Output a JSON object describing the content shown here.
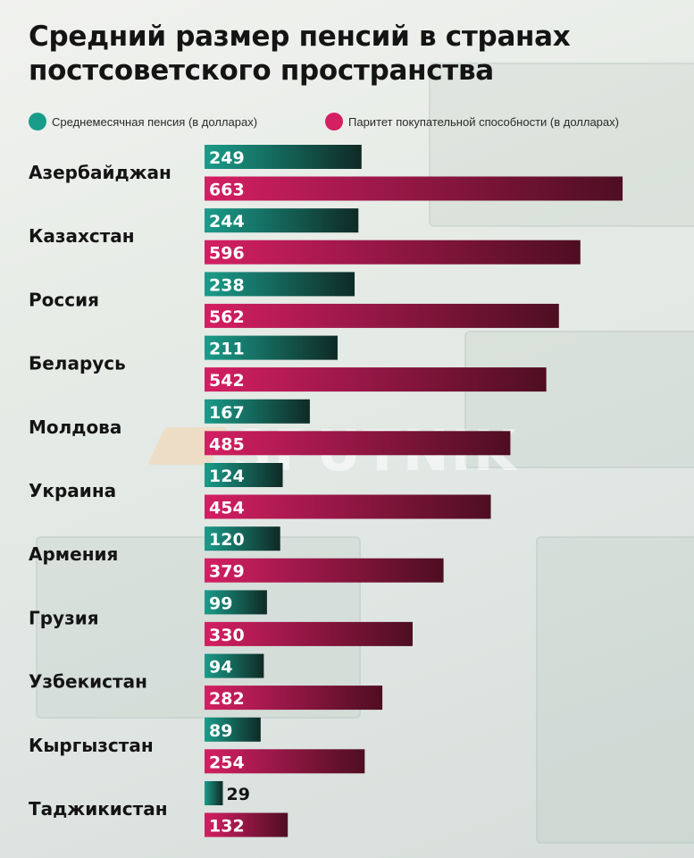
{
  "title_line1": "Средний размер пенсий в странах",
  "title_line2": "постсоветского пространства",
  "watermark": "SPUTNIK",
  "legend": [
    {
      "label": "Среднемесячная пенсия (в долларах)",
      "color": "#1a9c8a"
    },
    {
      "label": "Паритет покупательной способности (в долларах)",
      "color": "#d41f63"
    }
  ],
  "chart_data": {
    "type": "bar",
    "orientation": "horizontal",
    "title": "Средний размер пенсий в странах постсоветского пространства",
    "categories": [
      "Азербайджан",
      "Казахстан",
      "Россия",
      "Беларусь",
      "Молдова",
      "Украина",
      "Армения",
      "Грузия",
      "Узбекистан",
      "Кыргызстан",
      "Таджикистан"
    ],
    "series": [
      {
        "name": "Среднемесячная пенсия (в долларах)",
        "values": [
          249,
          244,
          238,
          211,
          167,
          124,
          120,
          99,
          94,
          89,
          29
        ],
        "color_start": "#1a9c8a",
        "color_end": "#0f2a25"
      },
      {
        "name": "Паритет покупательной способности (в долларах)",
        "values": [
          663,
          596,
          562,
          542,
          485,
          454,
          379,
          330,
          282,
          254,
          132
        ],
        "color_start": "#d41f63",
        "color_end": "#4e0e22"
      }
    ],
    "legend_position": "top",
    "grid": false
  }
}
